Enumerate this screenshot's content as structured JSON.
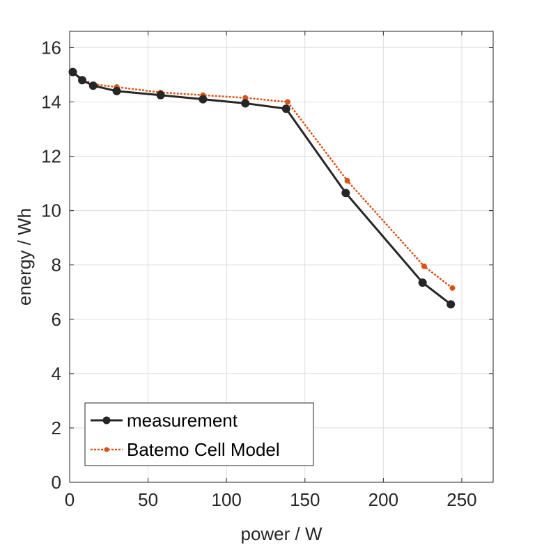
{
  "chart_data": {
    "type": "line",
    "title": "",
    "xlabel": "power / W",
    "ylabel": "energy / Wh",
    "xlim": [
      0,
      270
    ],
    "ylim": [
      0,
      16.6
    ],
    "xticks": [
      0,
      50,
      100,
      150,
      200,
      250
    ],
    "yticks": [
      0,
      2,
      4,
      6,
      8,
      10,
      12,
      14,
      16
    ],
    "grid": true,
    "legend": "bottom-left",
    "series": [
      {
        "name": "measurement",
        "color": "#262626",
        "line_style": "solid",
        "marker": "circle",
        "x": [
          2,
          8,
          15,
          30,
          58,
          85,
          112,
          138,
          176,
          225,
          243
        ],
        "y": [
          15.1,
          14.8,
          14.6,
          14.4,
          14.25,
          14.1,
          13.95,
          13.75,
          10.65,
          7.35,
          6.55
        ]
      },
      {
        "name": "Batemo Cell Model",
        "color": "#d95319",
        "line_style": "dotted",
        "marker": "dot",
        "x": [
          2,
          8,
          15,
          30,
          58,
          85,
          112,
          139,
          177,
          226,
          244
        ],
        "y": [
          15.1,
          14.85,
          14.65,
          14.55,
          14.35,
          14.25,
          14.15,
          14.0,
          11.1,
          7.95,
          7.15
        ]
      }
    ]
  }
}
